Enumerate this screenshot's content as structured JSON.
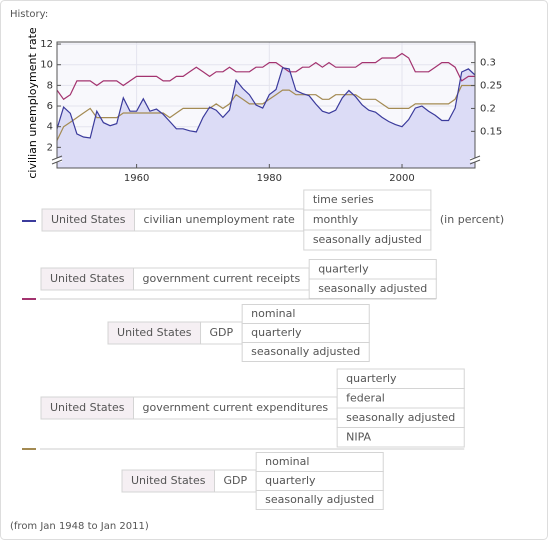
{
  "header": "History:",
  "chart_data": {
    "type": "line",
    "ylabel": "civilian unemployment rate",
    "x": [
      1948,
      1949,
      1950,
      1951,
      1952,
      1953,
      1954,
      1955,
      1956,
      1957,
      1958,
      1959,
      1960,
      1961,
      1962,
      1963,
      1964,
      1965,
      1966,
      1967,
      1968,
      1969,
      1970,
      1971,
      1972,
      1973,
      1974,
      1975,
      1976,
      1977,
      1978,
      1979,
      1980,
      1981,
      1982,
      1983,
      1984,
      1985,
      1986,
      1987,
      1988,
      1989,
      1990,
      1991,
      1992,
      1993,
      1994,
      1995,
      1996,
      1997,
      1998,
      1999,
      2000,
      2001,
      2002,
      2003,
      2004,
      2005,
      2006,
      2007,
      2008,
      2009,
      2010,
      2011
    ],
    "xlim": [
      1948,
      2011
    ],
    "xticks": [
      1960,
      1980,
      2000
    ],
    "ylim": [
      0,
      12.2
    ],
    "yticks": [
      2,
      4,
      6,
      8,
      10,
      12
    ],
    "y2lim": [
      0.07,
      0.345
    ],
    "y2ticks": [
      0.15,
      0.2,
      0.25,
      0.3
    ],
    "grid": true,
    "series": [
      {
        "color": "#3b3b9c",
        "axis": "y",
        "values": [
          3.8,
          5.9,
          5.3,
          3.3,
          3.0,
          2.9,
          5.5,
          4.4,
          4.1,
          4.3,
          6.8,
          5.5,
          5.5,
          6.7,
          5.5,
          5.7,
          5.2,
          4.5,
          3.8,
          3.8,
          3.6,
          3.5,
          4.9,
          5.9,
          5.6,
          4.9,
          5.6,
          8.5,
          7.7,
          7.1,
          6.1,
          5.8,
          7.1,
          7.6,
          9.7,
          9.6,
          7.5,
          7.2,
          7.0,
          6.2,
          5.5,
          5.3,
          5.6,
          6.8,
          7.5,
          6.9,
          6.1,
          5.6,
          5.4,
          4.9,
          4.5,
          4.2,
          4.0,
          4.7,
          5.8,
          6.0,
          5.5,
          5.1,
          4.6,
          4.6,
          5.8,
          9.3,
          9.6,
          9.0
        ],
        "legend": {
          "region": "United States",
          "quantity": "civilian unemployment rate",
          "options": [
            "time series",
            "monthly",
            "seasonally adjusted"
          ],
          "unit": "(in percent)"
        }
      },
      {
        "color": "#a3336f",
        "axis": "y2",
        "values": [
          0.24,
          0.22,
          0.23,
          0.26,
          0.26,
          0.26,
          0.25,
          0.26,
          0.26,
          0.26,
          0.25,
          0.26,
          0.27,
          0.27,
          0.27,
          0.27,
          0.26,
          0.26,
          0.27,
          0.27,
          0.28,
          0.29,
          0.28,
          0.27,
          0.28,
          0.28,
          0.29,
          0.28,
          0.28,
          0.28,
          0.29,
          0.29,
          0.3,
          0.3,
          0.29,
          0.28,
          0.28,
          0.29,
          0.29,
          0.3,
          0.29,
          0.3,
          0.29,
          0.29,
          0.29,
          0.29,
          0.3,
          0.3,
          0.3,
          0.31,
          0.31,
          0.31,
          0.32,
          0.31,
          0.28,
          0.28,
          0.28,
          0.29,
          0.3,
          0.3,
          0.29,
          0.26,
          0.27,
          0.27
        ],
        "legend": {
          "numerator": {
            "region": "United States",
            "quantity": "government current receipts",
            "options": [
              "quarterly",
              "seasonally adjusted"
            ]
          },
          "denominator": {
            "region": "United States",
            "quantity": "GDP",
            "options": [
              "nominal",
              "quarterly",
              "seasonally adjusted"
            ]
          }
        }
      },
      {
        "color": "#a38a52",
        "axis": "y2",
        "values": [
          0.13,
          0.16,
          0.17,
          0.18,
          0.19,
          0.2,
          0.18,
          0.18,
          0.18,
          0.18,
          0.19,
          0.19,
          0.19,
          0.19,
          0.19,
          0.19,
          0.19,
          0.18,
          0.19,
          0.2,
          0.2,
          0.2,
          0.2,
          0.2,
          0.21,
          0.2,
          0.21,
          0.23,
          0.22,
          0.21,
          0.21,
          0.21,
          0.22,
          0.23,
          0.24,
          0.24,
          0.23,
          0.23,
          0.23,
          0.23,
          0.22,
          0.22,
          0.23,
          0.23,
          0.23,
          0.23,
          0.22,
          0.22,
          0.22,
          0.21,
          0.2,
          0.2,
          0.2,
          0.2,
          0.21,
          0.21,
          0.21,
          0.21,
          0.21,
          0.21,
          0.22,
          0.25,
          0.25,
          0.25
        ],
        "legend": {
          "numerator": {
            "region": "United States",
            "quantity": "government current expenditures",
            "options": [
              "quarterly",
              "federal",
              "seasonally adjusted",
              "NIPA"
            ]
          },
          "denominator": {
            "region": "United States",
            "quantity": "GDP",
            "options": [
              "nominal",
              "quarterly",
              "seasonally adjusted"
            ]
          }
        }
      }
    ]
  },
  "footer": "(from Jan 1948 to Jan 2011)"
}
